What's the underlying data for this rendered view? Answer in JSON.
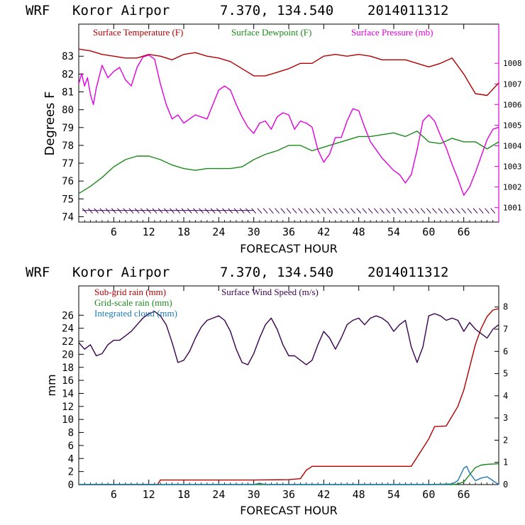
{
  "chart_data": [
    {
      "type": "line",
      "header": {
        "model": "WRF",
        "station": "Koror Airpor",
        "coords": "7.370, 134.540",
        "run": "2014011312"
      },
      "xlabel": "FORECAST HOUR",
      "ylabel": "Degrees F",
      "y2label": "",
      "xlim": [
        0,
        72
      ],
      "xticks": [
        6,
        12,
        18,
        24,
        30,
        36,
        42,
        48,
        54,
        60,
        66
      ],
      "xtick_labels": [
        "6",
        "12",
        "18",
        "24",
        "30",
        "36",
        "42",
        "48",
        "54",
        "60",
        "66"
      ],
      "ylim": [
        73.7,
        84.8
      ],
      "yticks": [
        74,
        75,
        76,
        77,
        78,
        79,
        80,
        81,
        82,
        83
      ],
      "ytick_labels": [
        "74",
        "75",
        "76",
        "77",
        "78",
        "79",
        "80",
        "81",
        "82",
        "83"
      ],
      "y2lim": [
        1000.3,
        1009.9
      ],
      "y2ticks": [
        1001,
        1002,
        1003,
        1004,
        1005,
        1006,
        1007,
        1008
      ],
      "y2tick_labels": [
        "1001",
        "1002",
        "1003",
        "1004",
        "1005",
        "1006",
        "1007",
        "1008"
      ],
      "series": [
        {
          "name": "Surface Temperature (F)",
          "color": "#b00000",
          "axis": "left",
          "x": [
            0,
            2,
            4,
            6,
            8,
            10,
            12,
            14,
            16,
            18,
            20,
            22,
            24,
            26,
            28,
            30,
            32,
            34,
            36,
            38,
            40,
            42,
            44,
            46,
            48,
            50,
            52,
            54,
            56,
            58,
            60,
            62,
            64,
            66,
            68,
            70,
            72
          ],
          "values": [
            83.4,
            83.3,
            83.1,
            83.0,
            82.9,
            82.9,
            83.1,
            83.0,
            82.8,
            83.1,
            83.2,
            83.0,
            82.9,
            82.7,
            82.3,
            81.9,
            81.9,
            82.1,
            82.3,
            82.6,
            82.6,
            83.0,
            83.1,
            83.0,
            83.1,
            83.0,
            82.8,
            82.8,
            82.8,
            82.6,
            82.4,
            82.6,
            82.9,
            82.0,
            80.9,
            80.8,
            81.5
          ]
        },
        {
          "name": "Surface Dewpoint (F)",
          "color": "#1a8a1a",
          "axis": "left",
          "x": [
            0,
            2,
            4,
            6,
            8,
            10,
            12,
            14,
            16,
            18,
            20,
            22,
            24,
            26,
            28,
            30,
            32,
            34,
            36,
            38,
            40,
            42,
            44,
            46,
            48,
            50,
            52,
            54,
            56,
            58,
            60,
            62,
            64,
            66,
            68,
            70,
            72
          ],
          "values": [
            75.3,
            75.7,
            76.2,
            76.8,
            77.2,
            77.4,
            77.4,
            77.2,
            76.9,
            76.7,
            76.6,
            76.7,
            76.7,
            76.7,
            76.8,
            77.2,
            77.5,
            77.7,
            78.0,
            78.0,
            77.7,
            77.9,
            78.1,
            78.3,
            78.5,
            78.5,
            78.6,
            78.7,
            78.5,
            78.8,
            78.2,
            78.1,
            78.4,
            78.2,
            78.2,
            77.8,
            78.2
          ]
        },
        {
          "name": "Surface Pressure (mb)",
          "color": "#e000e0",
          "axis": "right",
          "x": [
            0,
            0.5,
            1,
            1.5,
            2,
            2.5,
            3,
            4,
            5,
            6,
            7,
            8,
            9,
            10,
            11,
            12,
            13,
            14,
            15,
            16,
            17,
            18,
            19,
            20,
            21,
            22,
            23,
            24,
            25,
            26,
            27,
            28,
            29,
            30,
            31,
            32,
            33,
            34,
            35,
            36,
            37,
            38,
            39,
            40,
            41,
            42,
            43,
            44,
            45,
            46,
            47,
            48,
            49,
            50,
            51,
            52,
            53,
            54,
            55,
            56,
            57,
            58,
            59,
            60,
            61,
            62,
            63,
            64,
            65,
            66,
            67,
            68,
            69,
            70,
            71,
            72
          ],
          "values": [
            1007.0,
            1007.5,
            1006.9,
            1007.3,
            1006.5,
            1006.0,
            1006.8,
            1007.9,
            1007.3,
            1007.6,
            1007.8,
            1007.2,
            1006.9,
            1007.8,
            1008.3,
            1008.4,
            1008.2,
            1007.0,
            1006.0,
            1005.3,
            1005.5,
            1005.1,
            1005.3,
            1005.5,
            1005.4,
            1005.3,
            1006.0,
            1006.7,
            1006.9,
            1006.7,
            1006.0,
            1005.4,
            1004.9,
            1004.6,
            1005.1,
            1005.2,
            1004.8,
            1005.4,
            1005.6,
            1005.5,
            1004.8,
            1005.2,
            1005.1,
            1004.9,
            1003.8,
            1003.2,
            1003.6,
            1004.4,
            1004.4,
            1005.2,
            1005.8,
            1005.7,
            1004.9,
            1004.2,
            1003.8,
            1003.4,
            1003.1,
            1002.8,
            1002.6,
            1002.2,
            1002.6,
            1003.8,
            1005.2,
            1005.5,
            1005.2,
            1004.5,
            1003.9,
            1003.1,
            1002.4,
            1001.6,
            1002.0,
            1002.7,
            1003.5,
            1004.3,
            1004.8,
            1004.9
          ]
        }
      ],
      "wind_barbs": {
        "name": "Wind barbs",
        "color": "#400060",
        "y": 74.35,
        "hours": [
          1,
          2,
          3,
          4,
          5,
          6,
          7,
          8,
          9,
          10,
          11,
          12,
          13,
          14,
          15,
          16,
          17,
          18,
          19,
          20,
          21,
          22,
          23,
          24,
          25,
          26,
          27,
          28,
          29,
          30,
          31,
          32,
          33,
          34,
          35,
          36,
          37,
          38,
          39,
          40,
          41,
          42,
          43,
          44,
          45,
          46,
          47,
          48,
          49,
          50,
          51,
          52,
          53,
          54,
          55,
          56,
          57,
          58,
          59,
          60,
          61,
          62,
          63,
          64,
          65,
          66,
          67,
          68,
          69,
          70,
          71
        ]
      }
    },
    {
      "type": "line",
      "header": {
        "model": "WRF",
        "station": "Koror Airpor",
        "coords": "7.370, 134.540",
        "run": "2014011312"
      },
      "xlabel": "FORECAST HOUR",
      "ylabel": "mm",
      "xlim": [
        0,
        72
      ],
      "xticks": [
        6,
        12,
        18,
        24,
        30,
        36,
        42,
        48,
        54,
        60,
        66
      ],
      "xtick_labels": [
        "6",
        "12",
        "18",
        "24",
        "30",
        "36",
        "42",
        "48",
        "54",
        "60",
        "66"
      ],
      "ylim": [
        0,
        30.5
      ],
      "yticks": [
        0,
        2,
        4,
        6,
        8,
        10,
        12,
        14,
        16,
        18,
        20,
        22,
        24,
        26
      ],
      "ytick_labels": [
        "0",
        "2",
        "4",
        "6",
        "8",
        "10",
        "12",
        "14",
        "16",
        "18",
        "20",
        "22",
        "24",
        "26"
      ],
      "y2lim": [
        0,
        8.95
      ],
      "y2ticks": [
        0,
        1,
        2,
        3,
        4,
        5,
        6,
        7,
        8
      ],
      "y2tick_labels": [
        "0",
        "1",
        "2",
        "3",
        "4",
        "5",
        "6",
        "7",
        "8"
      ],
      "series": [
        {
          "name": "Sub-grid rain (mm)",
          "color": "#b00000",
          "axis": "left",
          "x": [
            0,
            13.5,
            14,
            20,
            30,
            36,
            38,
            39,
            40,
            50,
            57,
            60,
            61,
            63,
            64,
            65,
            66,
            67,
            68,
            69,
            70,
            71,
            72
          ],
          "values": [
            0,
            0,
            0.7,
            0.7,
            0.7,
            0.75,
            0.9,
            2.2,
            2.8,
            2.8,
            2.8,
            7.0,
            8.9,
            9.0,
            10.5,
            12.0,
            14.5,
            18.0,
            21.5,
            24.0,
            25.8,
            26.8,
            27.0
          ]
        },
        {
          "name": "Grid-scale rain (mm)",
          "color": "#1a8a1a",
          "axis": "left",
          "x": [
            0,
            64,
            65,
            66,
            67,
            68,
            69,
            70,
            72
          ],
          "values": [
            0,
            0,
            0.1,
            0.4,
            1.5,
            2.6,
            3.0,
            3.1,
            3.2
          ]
        },
        {
          "name": "Integrated cloud (mm)",
          "color": "#1f77b4",
          "axis": "left",
          "x": [
            0,
            30,
            31,
            32,
            60,
            64,
            65,
            66,
            66.5,
            67,
            68,
            69,
            70,
            71,
            72
          ],
          "values": [
            0,
            0,
            0.2,
            0,
            0,
            0.1,
            0.6,
            2.5,
            2.8,
            1.8,
            0.6,
            1.0,
            1.2,
            0.6,
            0
          ]
        },
        {
          "name": "Surface Wind Speed (m/s)",
          "color": "#3a0050",
          "axis": "right",
          "x": [
            0,
            1,
            2,
            3,
            4,
            5,
            6,
            7,
            8,
            9,
            10,
            11,
            12,
            13,
            14,
            15,
            16,
            17,
            18,
            19,
            20,
            21,
            22,
            23,
            24,
            25,
            26,
            27,
            28,
            29,
            30,
            31,
            32,
            33,
            34,
            35,
            36,
            37,
            38,
            39,
            40,
            41,
            42,
            43,
            44,
            45,
            46,
            47,
            48,
            49,
            50,
            51,
            52,
            53,
            54,
            55,
            56,
            57,
            58,
            59,
            60,
            61,
            62,
            63,
            64,
            65,
            66,
            67,
            68,
            69,
            70,
            71,
            72
          ],
          "values": [
            6.4,
            6.1,
            6.3,
            5.8,
            5.9,
            6.3,
            6.5,
            6.5,
            6.7,
            6.9,
            7.2,
            7.5,
            7.7,
            7.8,
            7.6,
            7.2,
            6.4,
            5.5,
            5.6,
            6.0,
            6.6,
            7.1,
            7.4,
            7.5,
            7.6,
            7.4,
            6.9,
            6.1,
            5.5,
            5.4,
            5.9,
            6.6,
            7.2,
            7.5,
            7.0,
            6.3,
            5.8,
            5.8,
            5.6,
            5.4,
            5.6,
            6.3,
            6.9,
            6.6,
            6.1,
            6.6,
            7.2,
            7.4,
            7.5,
            7.2,
            7.5,
            7.6,
            7.5,
            7.3,
            6.9,
            7.2,
            7.4,
            6.2,
            5.5,
            6.2,
            7.6,
            7.7,
            7.6,
            7.4,
            7.5,
            7.4,
            6.9,
            7.3,
            7.0,
            6.8,
            6.6,
            7.0,
            7.2
          ]
        }
      ]
    }
  ]
}
